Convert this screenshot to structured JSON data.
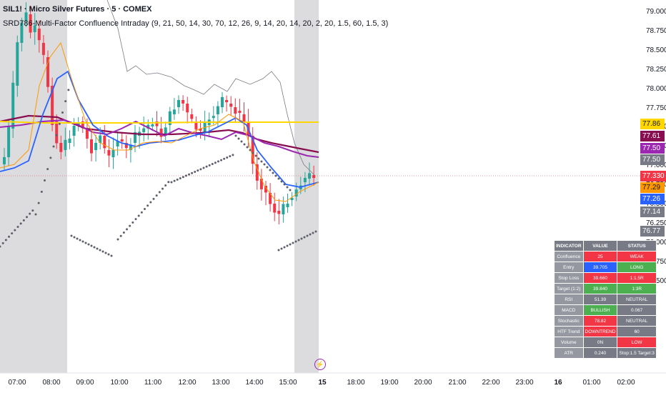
{
  "header": {
    "symbol_line": "SIL1! · Micro Silver Futures · 5 · COMEX",
    "indicator_line": "SRD786-Multi-Factor Confluence Intraday (9, 21, 50, 14, 30, 70, 12, 26, 9, 14, 20, 14, 20, 2, 20, 1.5, 60, 1.5, 3)"
  },
  "price_axis": {
    "ticks": [
      "79.000",
      "78.750",
      "78.500",
      "78.250",
      "78.000",
      "77.750",
      "77.500",
      "77.250",
      "77.000",
      "76.750",
      "76.500",
      "76.250",
      "76.000",
      "75.750",
      "75.500"
    ],
    "tags": [
      {
        "label": "77.86",
        "color": "#ffd600",
        "text_color": "#131722"
      },
      {
        "label": "77.61",
        "color": "#880e4f",
        "text_color": "#ffffff"
      },
      {
        "label": "77.50",
        "color": "#9c27b0",
        "text_color": "#ffffff"
      },
      {
        "label": "77.50",
        "color": "#787b86",
        "text_color": "#ffffff"
      },
      {
        "label": "77.330",
        "color": "#f23645",
        "text_color": "#ffffff"
      },
      {
        "label": "77.29",
        "color": "#ff9800",
        "text_color": "#131722"
      },
      {
        "label": "77.26",
        "color": "#2962ff",
        "text_color": "#ffffff"
      },
      {
        "label": "77.14",
        "color": "#787b86",
        "text_color": "#ffffff"
      },
      {
        "label": "76.77",
        "color": "#787b86",
        "text_color": "#ffffff"
      }
    ]
  },
  "time_axis": {
    "ticks": [
      {
        "label": "07:00",
        "bold": false
      },
      {
        "label": "08:00",
        "bold": false
      },
      {
        "label": "09:00",
        "bold": false
      },
      {
        "label": "10:00",
        "bold": false
      },
      {
        "label": "11:00",
        "bold": false
      },
      {
        "label": "12:00",
        "bold": false
      },
      {
        "label": "13:00",
        "bold": false
      },
      {
        "label": "14:00",
        "bold": false
      },
      {
        "label": "15:00",
        "bold": false
      },
      {
        "label": "15",
        "bold": true
      },
      {
        "label": "18:00",
        "bold": false
      },
      {
        "label": "19:00",
        "bold": false
      },
      {
        "label": "20:00",
        "bold": false
      },
      {
        "label": "21:00",
        "bold": false
      },
      {
        "label": "22:00",
        "bold": false
      },
      {
        "label": "23:00",
        "bold": false
      },
      {
        "label": "16",
        "bold": true
      },
      {
        "label": "01:00",
        "bold": false
      },
      {
        "label": "02:00",
        "bold": false
      }
    ]
  },
  "table": {
    "headers": [
      "INDICATOR",
      "VALUE",
      "STATUS"
    ],
    "rows": [
      {
        "name": "Confluence",
        "value": "25",
        "value_color": "red",
        "status": "WEAK",
        "status_color": "red"
      },
      {
        "name": "Entry",
        "value": "39.705",
        "value_color": "blue",
        "status": "LONG",
        "status_color": "green"
      },
      {
        "name": "Stop Loss",
        "value": "39.660",
        "value_color": "red",
        "status": "1:1.5R",
        "status_color": "red"
      },
      {
        "name": "Target (1:2)",
        "value": "39.840",
        "value_color": "green",
        "status": "1:3R",
        "status_color": "green"
      },
      {
        "name": "RSI",
        "value": "51.39",
        "value_color": "gray",
        "status": "NEUTRAL",
        "status_color": "gray"
      },
      {
        "name": "MACD",
        "value": "BULLISH",
        "value_color": "green",
        "status": "0.067",
        "status_color": "gray"
      },
      {
        "name": "Stochastic",
        "value": "78.82",
        "value_color": "red",
        "status": "NEUTRAL",
        "status_color": "gray"
      },
      {
        "name": "HTF Trend",
        "value": "DOWNTREND",
        "value_color": "red",
        "status": "60",
        "status_color": "gray"
      },
      {
        "name": "Volume",
        "value": "0N",
        "value_color": "gray",
        "status": "LOW",
        "status_color": "red"
      },
      {
        "name": "ATR",
        "value": "0.240",
        "value_color": "gray",
        "status": "Stop:1.5 Target:3",
        "status_color": "gray"
      }
    ]
  },
  "icons": {
    "replay": "lightning-icon"
  }
}
